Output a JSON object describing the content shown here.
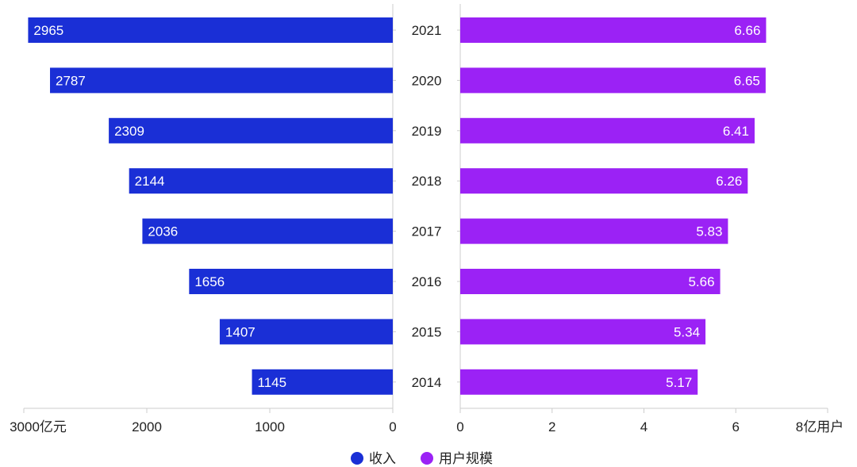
{
  "chart_data": {
    "type": "bar",
    "orientation": "horizontal-butterfly",
    "categories": [
      "2021",
      "2020",
      "2019",
      "2018",
      "2017",
      "2016",
      "2015",
      "2014"
    ],
    "series": [
      {
        "name": "收入",
        "side": "left",
        "color": "#1a2fd6",
        "values": [
          2965,
          2787,
          2309,
          2144,
          2036,
          1656,
          1407,
          1145
        ],
        "axis": {
          "range": [
            0,
            3000
          ],
          "ticks": [
            "0",
            "1000",
            "2000",
            "3000亿元"
          ],
          "tick_values": [
            0,
            1000,
            2000,
            3000
          ]
        }
      },
      {
        "name": "用户规模",
        "side": "right",
        "color": "#9b22f5",
        "values": [
          6.66,
          6.65,
          6.41,
          6.26,
          5.83,
          5.66,
          5.34,
          5.17
        ],
        "axis": {
          "range": [
            0,
            8
          ],
          "ticks": [
            "0",
            "2",
            "4",
            "6",
            "8亿用户"
          ],
          "tick_values": [
            0,
            2,
            4,
            6,
            8
          ]
        }
      }
    ],
    "value_labels": {
      "left": [
        "2965",
        "2787",
        "2309",
        "2144",
        "2036",
        "1656",
        "1407",
        "1145"
      ],
      "right": [
        "6.66",
        "6.65",
        "6.41",
        "6.26",
        "5.83",
        "5.66",
        "5.34",
        "5.17"
      ]
    },
    "legend_position": "bottom",
    "grid": false
  }
}
